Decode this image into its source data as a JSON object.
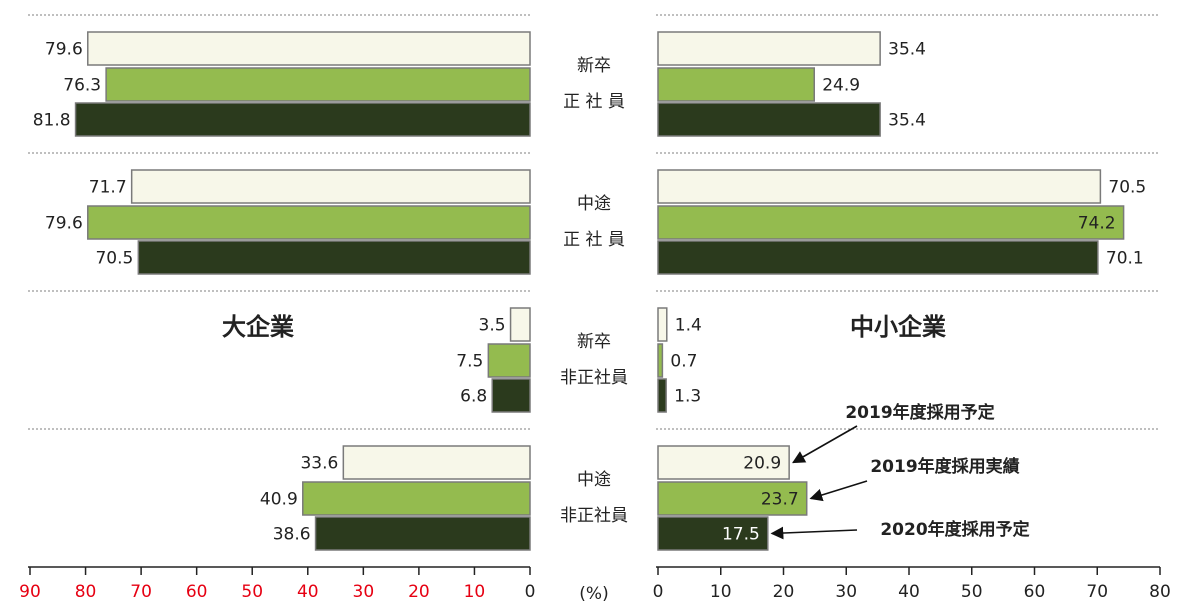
{
  "chart_data": {
    "type": "bar",
    "x_label": "(%)",
    "legend": "arrows",
    "categories": [
      [
        "新卒",
        "正 社 員"
      ],
      [
        "中途",
        "正 社 員"
      ],
      [
        "新卒",
        "非正社員"
      ],
      [
        "中途",
        "非正社員"
      ]
    ],
    "series": [
      {
        "name": "2019年度採用予定",
        "color": "#f7f7e9"
      },
      {
        "name": "2019年度採用実績",
        "color": "#94bb4f"
      },
      {
        "name": "2020年度採用予定",
        "color": "#2b3a1d"
      }
    ],
    "panels": [
      {
        "title": "大企業",
        "values": [
          [
            79.6,
            71.7,
            3.5,
            33.6
          ],
          [
            76.3,
            79.6,
            7.5,
            40.9
          ],
          [
            81.8,
            70.5,
            6.8,
            38.6
          ]
        ],
        "xlim": [
          90,
          0
        ],
        "xticks": [
          90,
          80,
          70,
          60,
          50,
          40,
          30,
          20,
          10,
          0
        ],
        "xtick_colors": [
          "#e60012",
          "#e60012",
          "#e60012",
          "#e60012",
          "#e60012",
          "#e60012",
          "#e60012",
          "#e60012",
          "#e60012",
          "#222222"
        ]
      },
      {
        "title": "中小企業",
        "values": [
          [
            35.4,
            70.5,
            1.4,
            20.9
          ],
          [
            24.9,
            74.2,
            0.7,
            23.7
          ],
          [
            35.4,
            70.1,
            1.3,
            17.5
          ]
        ],
        "xlim": [
          0,
          80
        ],
        "xticks": [
          0,
          10,
          20,
          30,
          40,
          50,
          60,
          70,
          80
        ]
      }
    ]
  }
}
